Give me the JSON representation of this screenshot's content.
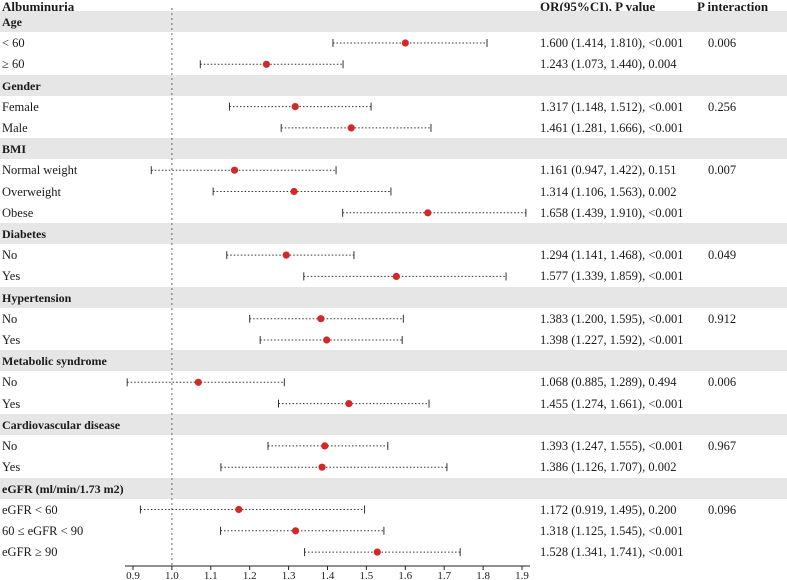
{
  "header": {
    "outcome": "Albuminuria",
    "or_label": "OR(95%CI), P value",
    "p_interaction_label": "P interaction"
  },
  "chart_data": {
    "type": "forest",
    "xlim": [
      0.85,
      1.92
    ],
    "reference_line": 1.0,
    "ticks": [
      "0.9",
      "1.0",
      "1.1",
      "1.2",
      "1.3",
      "1.4",
      "1.5",
      "1.6",
      "1.7",
      "1.8",
      "1.9"
    ],
    "point_color": "#d62728",
    "groups": [
      {
        "name": "Age",
        "p_interaction": "0.006",
        "rows": [
          {
            "label": "< 60",
            "or": 1.6,
            "lo": 1.414,
            "hi": 1.81,
            "text": "1.600 (1.414, 1.810), <0.001"
          },
          {
            "label": "≥ 60",
            "or": 1.243,
            "lo": 1.073,
            "hi": 1.44,
            "text": "1.243 (1.073, 1.440), 0.004"
          }
        ]
      },
      {
        "name": "Gender",
        "p_interaction": "0.256",
        "rows": [
          {
            "label": "Female",
            "or": 1.317,
            "lo": 1.148,
            "hi": 1.512,
            "text": "1.317 (1.148, 1.512), <0.001"
          },
          {
            "label": "Male",
            "or": 1.461,
            "lo": 1.281,
            "hi": 1.666,
            "text": "1.461 (1.281, 1.666), <0.001"
          }
        ]
      },
      {
        "name": "BMI",
        "p_interaction": "0.007",
        "rows": [
          {
            "label": "Normal weight",
            "or": 1.161,
            "lo": 0.947,
            "hi": 1.422,
            "text": "1.161 (0.947, 1.422), 0.151"
          },
          {
            "label": "Overweight",
            "or": 1.314,
            "lo": 1.106,
            "hi": 1.563,
            "text": "1.314 (1.106, 1.563), 0.002"
          },
          {
            "label": "Obese",
            "or": 1.658,
            "lo": 1.439,
            "hi": 1.91,
            "text": "1.658 (1.439, 1.910), <0.001"
          }
        ]
      },
      {
        "name": "Diabetes",
        "p_interaction": "0.049",
        "rows": [
          {
            "label": "No",
            "or": 1.294,
            "lo": 1.141,
            "hi": 1.468,
            "text": "1.294 (1.141, 1.468), <0.001"
          },
          {
            "label": "Yes",
            "or": 1.577,
            "lo": 1.339,
            "hi": 1.859,
            "text": "1.577 (1.339, 1.859), <0.001"
          }
        ]
      },
      {
        "name": "Hypertension",
        "p_interaction": "0.912",
        "rows": [
          {
            "label": "No",
            "or": 1.383,
            "lo": 1.2,
            "hi": 1.595,
            "text": "1.383 (1.200, 1.595), <0.001"
          },
          {
            "label": "Yes",
            "or": 1.398,
            "lo": 1.227,
            "hi": 1.592,
            "text": "1.398 (1.227, 1.592), <0.001"
          }
        ]
      },
      {
        "name": "Metabolic syndrome",
        "p_interaction": "0.006",
        "rows": [
          {
            "label": "No",
            "or": 1.068,
            "lo": 0.885,
            "hi": 1.289,
            "text": "1.068 (0.885, 1.289), 0.494"
          },
          {
            "label": "Yes",
            "or": 1.455,
            "lo": 1.274,
            "hi": 1.661,
            "text": "1.455 (1.274, 1.661), <0.001"
          }
        ]
      },
      {
        "name": "Cardiovascular disease",
        "p_interaction": "0.967",
        "rows": [
          {
            "label": "No",
            "or": 1.393,
            "lo": 1.247,
            "hi": 1.555,
            "text": "1.393 (1.247, 1.555), <0.001"
          },
          {
            "label": "Yes",
            "or": 1.386,
            "lo": 1.126,
            "hi": 1.707,
            "text": "1.386 (1.126, 1.707), 0.002"
          }
        ]
      },
      {
        "name": "eGFR (ml/min/1.73 m2)",
        "p_interaction": "0.096",
        "rows": [
          {
            "label": "eGFR < 60",
            "or": 1.172,
            "lo": 0.919,
            "hi": 1.495,
            "text": "1.172 (0.919, 1.495), 0.200"
          },
          {
            "label": "60 ≤ eGFR < 90",
            "or": 1.318,
            "lo": 1.125,
            "hi": 1.545,
            "text": "1.318 (1.125, 1.545), <0.001"
          },
          {
            "label": "eGFR ≥ 90",
            "or": 1.528,
            "lo": 1.341,
            "hi": 1.741,
            "text": "1.528 (1.341, 1.741), <0.001"
          }
        ]
      }
    ]
  }
}
